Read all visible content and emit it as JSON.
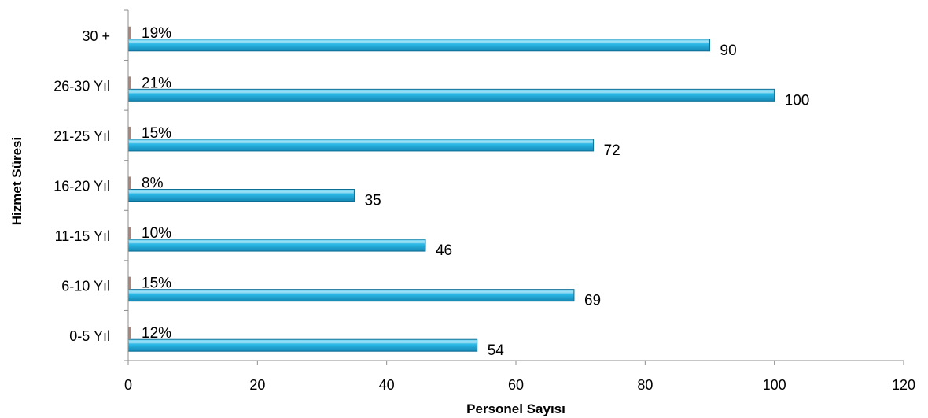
{
  "chart_data": {
    "type": "bar",
    "orientation": "horizontal",
    "categories": [
      "0-5 Yıl",
      "6-10 Yıl",
      "11-15 Yıl",
      "16-20 Yıl",
      "21-25 Yıl",
      "26-30 Yıl",
      "30 +"
    ],
    "series": [
      {
        "values": [
          54,
          69,
          46,
          35,
          72,
          100,
          90
        ],
        "data_labels": [
          "54",
          "69",
          "46",
          "35",
          "72",
          "100",
          "90"
        ]
      },
      {
        "values": [
          12,
          15,
          10,
          8,
          15,
          21,
          19
        ],
        "data_labels": [
          "12%",
          "15%",
          "10%",
          "8%",
          "15%",
          "21%",
          "19%"
        ]
      }
    ],
    "xlabel": "Personel Sayısı",
    "ylabel": "Hizmet Süresi",
    "xlim": [
      0,
      120
    ],
    "xticks": [
      0,
      20,
      40,
      60,
      80,
      100,
      120
    ],
    "grid": false,
    "legend": "none",
    "colors": {
      "bar": "#29b6e4",
      "bar_light": "#8fe0f8",
      "bar_dark": "#1587b4",
      "bar_outline": "#0e6f95",
      "pct_marker": "#a9877c",
      "axis": "#8c8c8c"
    }
  }
}
